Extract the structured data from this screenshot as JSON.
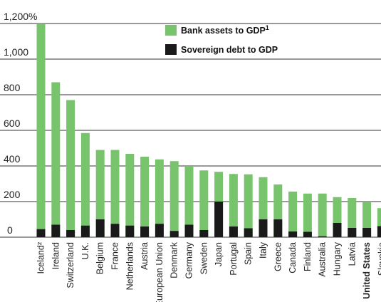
{
  "colors": {
    "bank_assets": "#77c46d",
    "sovereign_debt": "#1a1a1a",
    "gridline": "#333333"
  },
  "chart_data": {
    "type": "bar",
    "grouping": "overlapping",
    "categories": [
      "Iceland²",
      "Ireland",
      "Switzerland",
      "U.K.",
      "Belgium",
      "France",
      "Netherlands",
      "Austria",
      "European Union",
      "Denmark",
      "Germany",
      "Sweden",
      "Japan",
      "Portugal",
      "Spain",
      "Italy",
      "Greece",
      "Canada",
      "Finland",
      "Australia",
      "Hungary",
      "Latvia",
      "United States",
      "Slovakia"
    ],
    "bold_categories": [
      "United States"
    ],
    "series": [
      {
        "name": "Bank assets to GDP",
        "legend_superscript": "1",
        "values": [
          1200,
          870,
          770,
          585,
          490,
          490,
          468,
          452,
          437,
          427,
          400,
          375,
          367,
          355,
          353,
          337,
          296,
          256,
          245,
          245,
          225,
          220,
          200,
          163
        ]
      },
      {
        "name": "Sovereign debt to GDP",
        "values": [
          45,
          70,
          40,
          65,
          100,
          75,
          65,
          60,
          75,
          35,
          70,
          40,
          200,
          60,
          50,
          100,
          100,
          32,
          30,
          5,
          80,
          52,
          52,
          62
        ]
      }
    ],
    "y_ticks": [
      "1,200%",
      "1,000",
      "800",
      "600",
      "400",
      "200",
      "0"
    ],
    "y_tick_values": [
      1200,
      1000,
      800,
      600,
      400,
      200,
      0
    ],
    "ylim": [
      0,
      1200
    ],
    "grid": true,
    "legend": "top-center"
  }
}
